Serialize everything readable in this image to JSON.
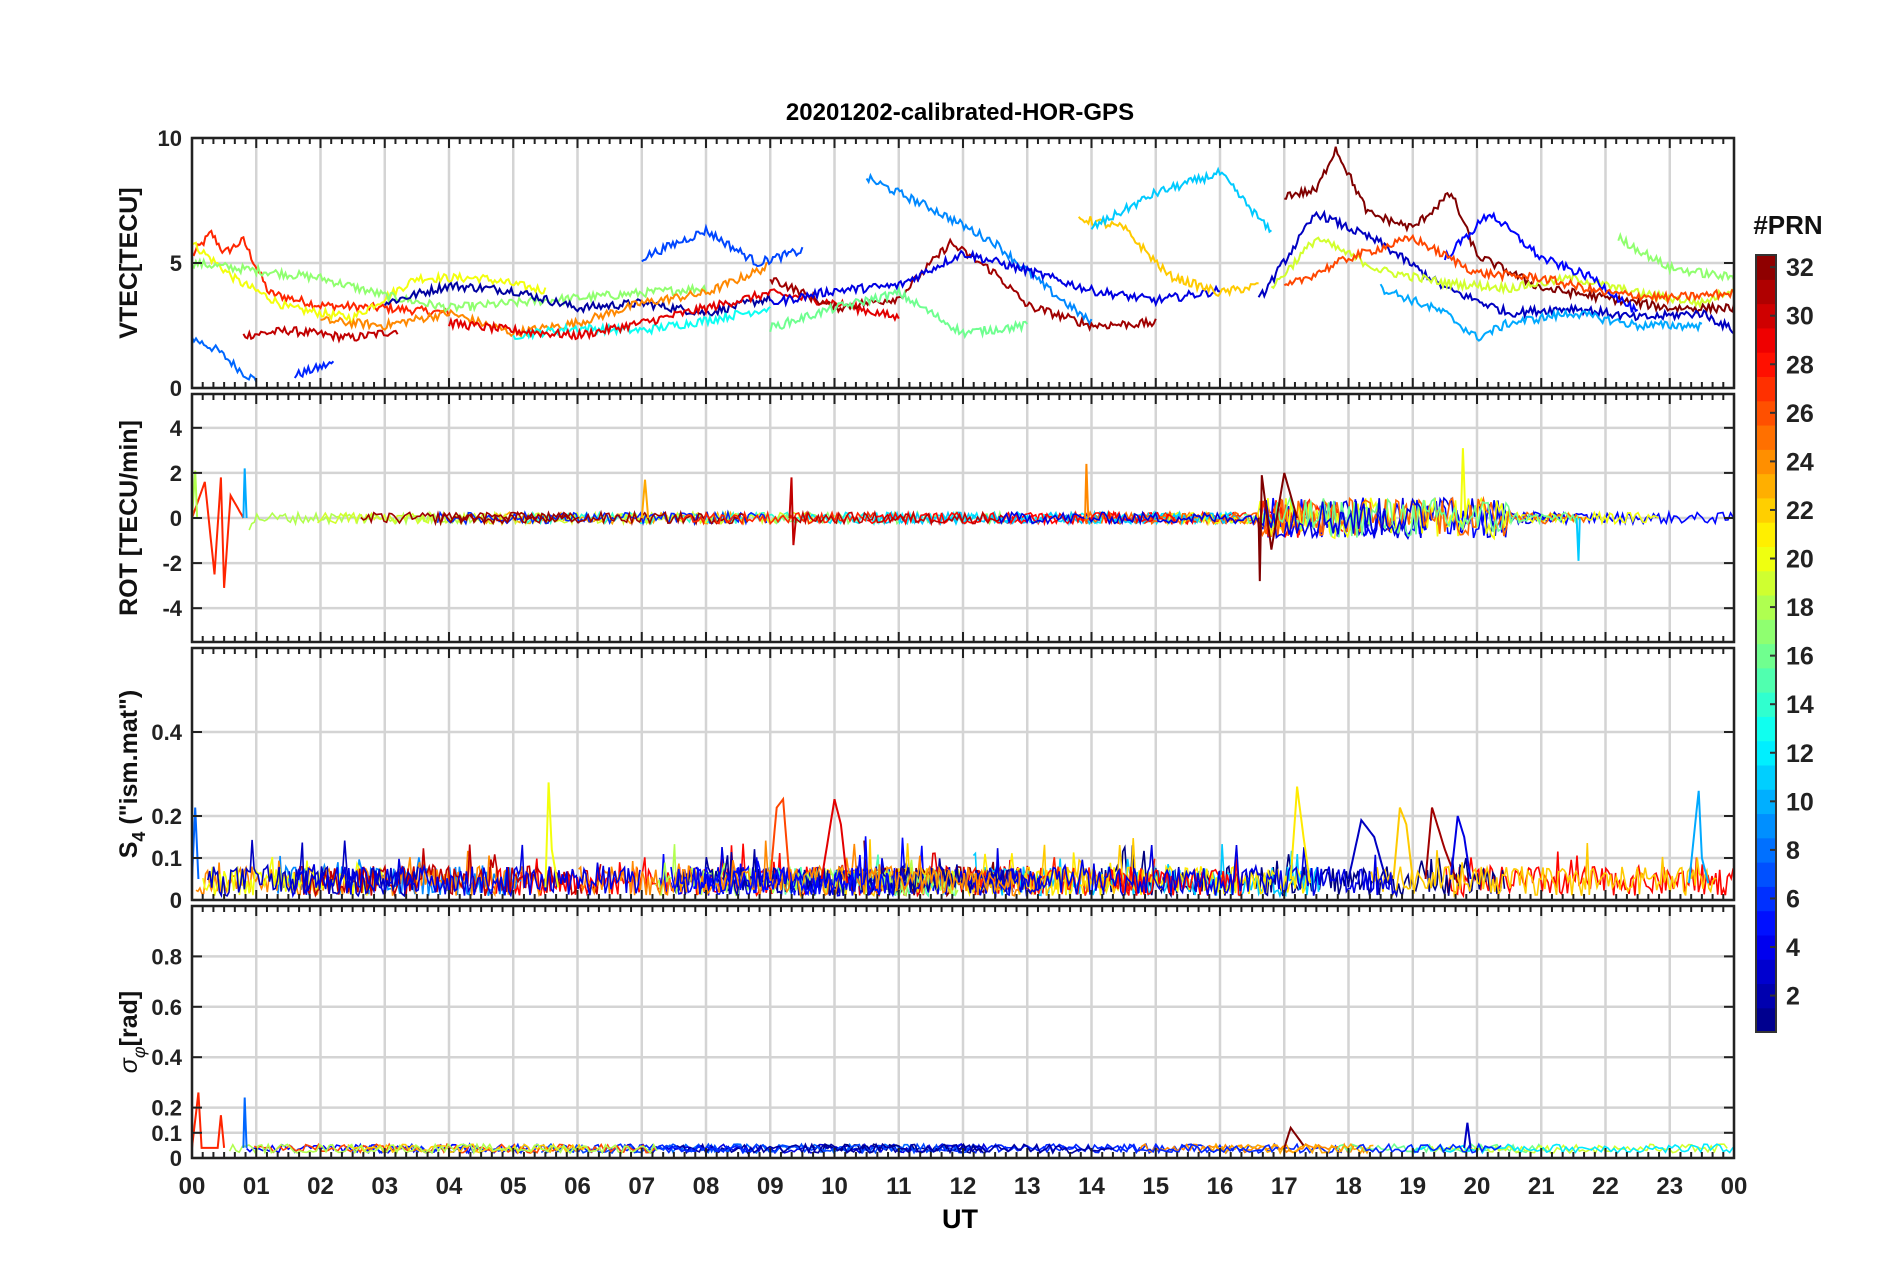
{
  "chart_data": {
    "type": "line",
    "title": "20201202-calibrated-HOR-GPS",
    "xlabel": "UT",
    "x_ticks": [
      "00",
      "01",
      "02",
      "03",
      "04",
      "05",
      "06",
      "07",
      "08",
      "09",
      "10",
      "11",
      "12",
      "13",
      "14",
      "15",
      "16",
      "17",
      "18",
      "19",
      "20",
      "21",
      "22",
      "23",
      "00"
    ],
    "xlim": [
      0,
      24
    ],
    "grid": true,
    "colorbar": {
      "label": "#PRN",
      "range": [
        1,
        32
      ],
      "ticks": [
        "2",
        "4",
        "6",
        "8",
        "10",
        "12",
        "14",
        "16",
        "18",
        "20",
        "22",
        "24",
        "26",
        "28",
        "30",
        "32"
      ],
      "colormap": "jet"
    },
    "panels": [
      {
        "ylabel": "VTEC[TECU]",
        "ylim": [
          0,
          10
        ],
        "yticks": [
          "0",
          "5",
          "10"
        ],
        "ytick_values": [
          0,
          5,
          10
        ],
        "grid_values": [
          0,
          5,
          10
        ],
        "series": [
          {
            "prn": 27,
            "x": [
              0,
              0.3,
              0.5,
              0.8,
              1.2,
              2,
              3,
              4
            ],
            "y": [
              5.3,
              6.2,
              5.4,
              5.9,
              3.8,
              3.3,
              3.2,
              3.0
            ]
          },
          {
            "prn": 8,
            "x": [
              0,
              0.4,
              0.8,
              1.0
            ],
            "y": [
              2.0,
              1.5,
              0.6,
              0.3
            ]
          },
          {
            "prn": 6,
            "x": [
              1.6,
              2.2
            ],
            "y": [
              0.5,
              1.0
            ]
          },
          {
            "prn": 30,
            "x": [
              0.8,
              1.5,
              2.5,
              3.2
            ],
            "y": [
              2.1,
              2.3,
              2.0,
              2.3
            ]
          },
          {
            "prn": 20,
            "x": [
              0,
              0.7,
              1.5,
              2.5,
              3.5,
              4.5,
              5.5
            ],
            "y": [
              5.8,
              4.3,
              3.2,
              2.8,
              4.4,
              4.4,
              3.9
            ]
          },
          {
            "prn": 17,
            "x": [
              0,
              1,
              2,
              3,
              4,
              5,
              6,
              7,
              8
            ],
            "y": [
              5.0,
              4.7,
              4.4,
              3.7,
              3.2,
              3.4,
              3.6,
              3.8,
              4.0
            ]
          },
          {
            "prn": 2,
            "x": [
              3,
              4,
              5,
              6,
              7,
              8,
              9
            ],
            "y": [
              3.4,
              4.1,
              3.9,
              3.2,
              3.4,
              3.0,
              3.6
            ]
          },
          {
            "prn": 24,
            "x": [
              2,
              3,
              4,
              5,
              6,
              7,
              8,
              9
            ],
            "y": [
              2.7,
              2.5,
              3.0,
              2.2,
              2.6,
              3.4,
              3.8,
              4.9
            ]
          },
          {
            "prn": 13,
            "x": [
              5,
              6,
              7,
              8,
              9
            ],
            "y": [
              2.1,
              2.4,
              2.3,
              2.7,
              3.2
            ]
          },
          {
            "prn": 29,
            "x": [
              4,
              5,
              6,
              7,
              8,
              9,
              10,
              11
            ],
            "y": [
              2.6,
              2.3,
              2.1,
              2.6,
              3.2,
              3.8,
              3.4,
              2.8
            ]
          },
          {
            "prn": 7,
            "x": [
              7.0,
              8.0,
              8.8,
              9.5
            ],
            "y": [
              5.2,
              6.3,
              5.0,
              5.5
            ]
          },
          {
            "prn": 9,
            "x": [
              10.5,
              11.5,
              12.5,
              13.3,
              14.0
            ],
            "y": [
              8.4,
              7.2,
              5.8,
              4.0,
              2.6
            ]
          },
          {
            "prn": 31,
            "x": [
              9.0,
              10,
              11,
              11.8,
              12.5,
              13,
              14,
              15
            ],
            "y": [
              4.4,
              3.2,
              3.6,
              5.8,
              4.6,
              3.3,
              2.5,
              2.6
            ]
          },
          {
            "prn": 4,
            "x": [
              9,
              10,
              11,
              12,
              13,
              14,
              15,
              16
            ],
            "y": [
              3.4,
              3.9,
              4.1,
              5.4,
              4.7,
              3.9,
              3.5,
              3.9
            ]
          },
          {
            "prn": 16,
            "x": [
              9,
              10,
              11,
              12,
              13
            ],
            "y": [
              2.4,
              3.2,
              3.8,
              2.2,
              2.5
            ]
          },
          {
            "prn": 22,
            "x": [
              13.8,
              14.5,
              15.2,
              16,
              16.6
            ],
            "y": [
              6.8,
              6.4,
              4.5,
              3.8,
              4.1
            ]
          },
          {
            "prn": 11,
            "x": [
              14.0,
              15.0,
              16.0,
              16.8
            ],
            "y": [
              6.4,
              7.8,
              8.6,
              6.2
            ]
          },
          {
            "prn": 32,
            "x": [
              17.0,
              17.5,
              17.8,
              18.3,
              19,
              19.6,
              20,
              21,
              22,
              23,
              24
            ],
            "y": [
              7.7,
              7.9,
              9.6,
              7.0,
              6.4,
              7.8,
              5.3,
              4.0,
              3.6,
              3.2,
              3.2
            ]
          },
          {
            "prn": 3,
            "x": [
              16.6,
              17.5,
              18.5,
              19.5,
              20.5,
              21.5,
              22.5,
              23.5,
              24
            ],
            "y": [
              3.5,
              7.0,
              5.8,
              4.0,
              3.0,
              3.2,
              2.8,
              3.0,
              2.3
            ]
          },
          {
            "prn": 19,
            "x": [
              16.8,
              17.5,
              18.5,
              19.5,
              20.5,
              21.5,
              22.5,
              23.5,
              24
            ],
            "y": [
              4.0,
              6.0,
              4.7,
              4.2,
              4.0,
              4.4,
              3.8,
              3.4,
              4.0
            ]
          },
          {
            "prn": 10,
            "x": [
              18.5,
              19.5,
              20.0,
              20.5,
              21.5,
              22.5,
              23.5
            ],
            "y": [
              4.0,
              3.0,
              2.0,
              2.6,
              3.0,
              2.5,
              2.5
            ]
          },
          {
            "prn": 5,
            "x": [
              19.5,
              20.2,
              21.0,
              21.8,
              22.5
            ],
            "y": [
              5.2,
              7.0,
              5.2,
              4.4,
              3.0
            ]
          },
          {
            "prn": 26,
            "x": [
              17,
              18,
              19,
              20,
              21,
              22,
              23,
              24
            ],
            "y": [
              4.0,
              5.2,
              6.0,
              4.6,
              4.4,
              3.8,
              3.6,
              3.8
            ]
          },
          {
            "prn": 17,
            "x": [
              22.2,
              23.0,
              24
            ],
            "y": [
              6.0,
              4.8,
              4.4
            ]
          }
        ]
      },
      {
        "ylabel": "ROT [TECU/min]",
        "ylim": [
          -5.5,
          5.5
        ],
        "yticks": [
          "-4",
          "-2",
          "0",
          "2",
          "4"
        ],
        "ytick_values": [
          -4,
          -2,
          0,
          2,
          4
        ],
        "grid_values": [
          -4,
          -2,
          0,
          2,
          4
        ],
        "series": [
          {
            "prn": 27,
            "x": [
              0.0,
              0.2,
              0.35,
              0.45,
              0.5,
              0.6,
              0.8
            ],
            "y": [
              0.0,
              1.6,
              -2.5,
              1.8,
              -3.1,
              1.0,
              0.0
            ]
          },
          {
            "prn": 10,
            "x": [
              0.8,
              0.82,
              0.85
            ],
            "y": [
              0.0,
              2.2,
              0.0
            ]
          },
          {
            "prn": 18,
            "x": [
              0.0,
              0.05,
              0.08
            ],
            "y": [
              0.0,
              2.1,
              0.0
            ]
          },
          {
            "prn": 23,
            "x": [
              7.0,
              7.05,
              7.1
            ],
            "y": [
              0.0,
              1.7,
              0.0
            ]
          },
          {
            "prn": 30,
            "x": [
              9.3,
              9.33,
              9.36,
              9.4
            ],
            "y": [
              0.0,
              1.8,
              -1.2,
              0.0
            ]
          },
          {
            "prn": 24,
            "x": [
              13.9,
              13.92,
              13.95
            ],
            "y": [
              0.0,
              2.4,
              0.0
            ]
          },
          {
            "prn": 32,
            "x": [
              16.6,
              16.62,
              16.65,
              16.8,
              17.0,
              17.2
            ],
            "y": [
              0.0,
              -2.8,
              1.9,
              -1.4,
              2.0,
              0.0
            ]
          },
          {
            "prn": 20,
            "x": [
              19.75,
              19.78,
              19.82
            ],
            "y": [
              0.0,
              3.1,
              0.0
            ]
          },
          {
            "prn": 11,
            "x": [
              21.55,
              21.58,
              21.6
            ],
            "y": [
              0.0,
              -1.9,
              0.0
            ]
          }
        ]
      },
      {
        "ylabel": "S4 (\"ism.mat\")",
        "ylim": [
          0,
          0.6
        ],
        "yticks": [
          "0",
          "0.1",
          "0.2",
          "0.4"
        ],
        "ytick_values": [
          0,
          0.1,
          0.2,
          0.4
        ],
        "grid_values": [
          0,
          0.1,
          0.2,
          0.4
        ],
        "series": [
          {
            "prn": 20,
            "x": [
              5.5,
              5.55,
              5.6,
              5.7
            ],
            "y": [
              0.03,
              0.28,
              0.12,
              0.03
            ]
          },
          {
            "prn": 26,
            "x": [
              9.0,
              9.1,
              9.2,
              9.3
            ],
            "y": [
              0.05,
              0.22,
              0.24,
              0.05
            ]
          },
          {
            "prn": 29,
            "x": [
              9.8,
              10.0,
              10.1,
              10.2
            ],
            "y": [
              0.05,
              0.24,
              0.18,
              0.04
            ]
          },
          {
            "prn": 21,
            "x": [
              17.1,
              17.2,
              17.3,
              17.4
            ],
            "y": [
              0.05,
              0.27,
              0.15,
              0.04
            ]
          },
          {
            "prn": 3,
            "x": [
              18.0,
              18.2,
              18.4,
              18.6
            ],
            "y": [
              0.05,
              0.19,
              0.15,
              0.04
            ]
          },
          {
            "prn": 22,
            "x": [
              18.7,
              18.8,
              18.9,
              19.0
            ],
            "y": [
              0.05,
              0.22,
              0.18,
              0.05
            ]
          },
          {
            "prn": 31,
            "x": [
              19.2,
              19.3,
              19.5,
              19.7
            ],
            "y": [
              0.05,
              0.22,
              0.12,
              0.04
            ]
          },
          {
            "prn": 4,
            "x": [
              19.6,
              19.7,
              19.8,
              19.9
            ],
            "y": [
              0.06,
              0.2,
              0.15,
              0.05
            ]
          },
          {
            "prn": 10,
            "x": [
              23.3,
              23.45,
              23.5,
              23.6
            ],
            "y": [
              0.04,
              0.26,
              0.1,
              0.04
            ]
          },
          {
            "prn": 8,
            "x": [
              0.0,
              0.05,
              0.1
            ],
            "y": [
              0.05,
              0.22,
              0.05
            ]
          }
        ]
      },
      {
        "ylabel": "σφ[rad]",
        "ylim": [
          0,
          1.0
        ],
        "yticks": [
          "0",
          "0.1",
          "0.2",
          "0.4",
          "0.6",
          "0.8"
        ],
        "ytick_values": [
          0,
          0.1,
          0.2,
          0.4,
          0.6,
          0.8
        ],
        "grid_values": [
          0,
          0.1,
          0.2,
          0.4,
          0.6,
          0.8
        ],
        "series": [
          {
            "prn": 27,
            "x": [
              0.0,
              0.1,
              0.15,
              0.4,
              0.45,
              0.5
            ],
            "y": [
              0.04,
              0.26,
              0.04,
              0.04,
              0.17,
              0.04
            ]
          },
          {
            "prn": 8,
            "x": [
              0.8,
              0.82,
              0.85
            ],
            "y": [
              0.04,
              0.24,
              0.04
            ]
          },
          {
            "prn": 32,
            "x": [
              17.0,
              17.1,
              17.3
            ],
            "y": [
              0.04,
              0.12,
              0.05
            ]
          },
          {
            "prn": 3,
            "x": [
              19.8,
              19.85,
              19.9
            ],
            "y": [
              0.04,
              0.14,
              0.04
            ]
          }
        ]
      }
    ]
  }
}
